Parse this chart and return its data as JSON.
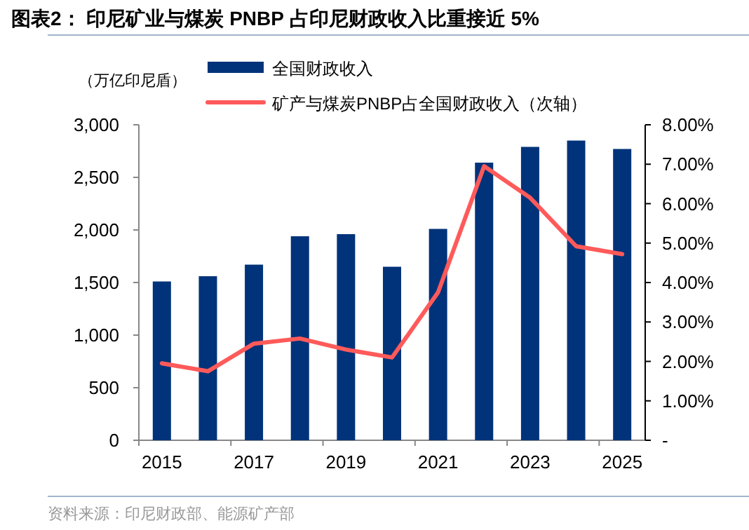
{
  "chart_data": {
    "type": "bar",
    "title": "图表2：  印尼矿业与煤炭 **PNBP** 占印尼财政收入比重接近 **5%**",
    "ylabel": "（万亿印尼盾）",
    "categories": [
      "2015",
      null,
      "2017",
      null,
      "2019",
      null,
      "2021",
      null,
      "2023",
      null,
      "2025"
    ],
    "series": [
      {
        "name": "全国财政收入",
        "color": "#00337a",
        "values": [
          1510,
          1560,
          1670,
          1940,
          1960,
          1650,
          2010,
          2640,
          2790,
          2850,
          2770
        ]
      },
      {
        "name": "矿产与煤炭PNBP占全国财政收入（次轴）",
        "type": "line",
        "axis": "y2",
        "color": "#ff5a5a",
        "values": [
          1.95,
          1.75,
          2.45,
          2.58,
          2.3,
          2.1,
          3.75,
          6.95,
          6.15,
          4.92,
          4.72
        ]
      }
    ],
    "ylim": [
      0,
      3000
    ],
    "yticks": [
      0,
      500,
      {
        "value": 1000,
        "label": "1,000"
      },
      {
        "value": 1500,
        "label": "1,500"
      },
      {
        "value": 2000,
        "label": "2,000"
      },
      {
        "value": 2500,
        "label": "2,500"
      },
      {
        "value": 3000,
        "label": "3,000"
      }
    ],
    "y2lim": [
      0,
      8
    ],
    "y2ticks": [
      {
        "value": 0,
        "label": "-"
      },
      {
        "value": 1,
        "label": "1.00%"
      },
      {
        "value": 2,
        "label": "2.00%"
      },
      {
        "value": 3,
        "label": "3.00%"
      },
      {
        "value": 4,
        "label": "4.00%"
      },
      {
        "value": 5,
        "label": "5.00%"
      },
      {
        "value": 6,
        "label": "6.00%"
      },
      {
        "value": 7,
        "label": "7.00%"
      },
      {
        "value": 8,
        "label": "8.00%"
      }
    ],
    "legend": "top left",
    "annotations": [
      "资料来源：印尼财政部、能源矿产部"
    ]
  }
}
